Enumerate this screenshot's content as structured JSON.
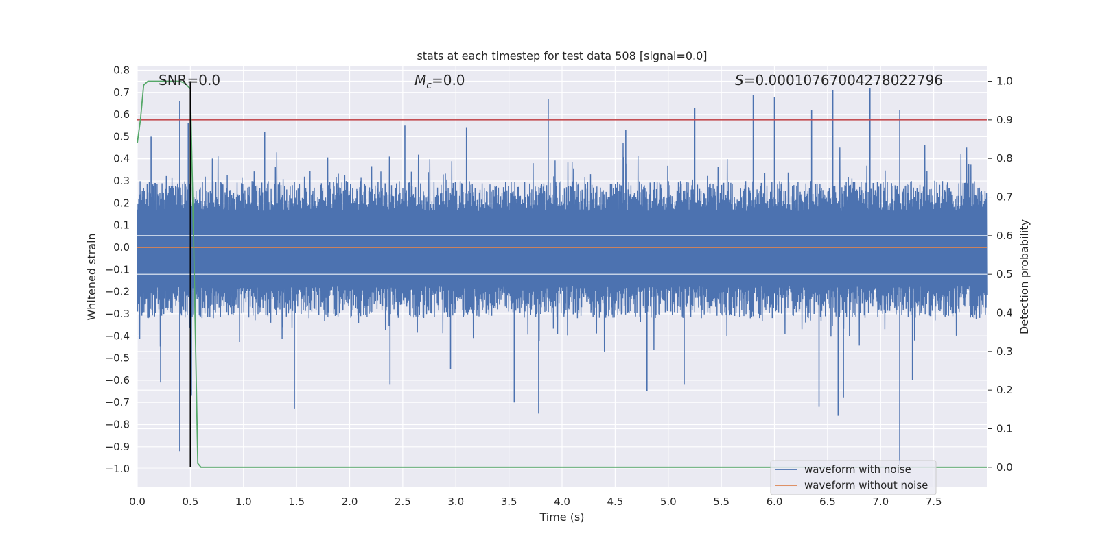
{
  "chart_data": {
    "type": "line",
    "title": "stats at each timestep for test data 508 [signal=0.0]",
    "xlabel": "Time (s)",
    "ylabel_left": "Whitened strain",
    "ylabel_right": "Detection probability",
    "xlim": [
      0.0,
      8.0
    ],
    "ylim_left": [
      -1.08,
      0.82
    ],
    "ylim_right": [
      -0.05,
      1.04
    ],
    "x_ticks": [
      "0.0",
      "0.5",
      "1.0",
      "1.5",
      "2.0",
      "2.5",
      "3.0",
      "3.5",
      "4.0",
      "4.5",
      "5.0",
      "5.5",
      "6.0",
      "6.5",
      "7.0",
      "7.5"
    ],
    "y_left_ticks": [
      "0.8",
      "0.7",
      "0.6",
      "0.5",
      "0.4",
      "0.3",
      "0.2",
      "0.1",
      "0.0",
      "−0.1",
      "−0.2",
      "−0.3",
      "−0.4",
      "−0.5",
      "−0.6",
      "−0.7",
      "−0.8",
      "−0.9",
      "−1.0"
    ],
    "y_right_ticks": [
      "1.0",
      "0.9",
      "0.8",
      "0.7",
      "0.6",
      "0.5",
      "0.4",
      "0.3",
      "0.2",
      "0.1",
      "0.0"
    ],
    "grid": true,
    "legend_placement": "lower-right",
    "annotations": {
      "snr": "SNR=0.0",
      "mc_symbol": "M",
      "mc_sub": "c",
      "mc_value": "=0.0",
      "s_symbol": "S",
      "s_value": "=0.00010767004278022796"
    },
    "series": [
      {
        "name": "waveform with noise",
        "axis": "left",
        "color": "#4c72b0",
        "envelope_upper": 0.3,
        "envelope_lower": -0.32,
        "peaks": [
          [
            0.4,
            0.66
          ],
          [
            0.48,
            0.56
          ],
          [
            0.13,
            0.5
          ],
          [
            3.87,
            0.67
          ],
          [
            5.25,
            0.63
          ],
          [
            5.8,
            0.69
          ],
          [
            6.0,
            0.68
          ],
          [
            6.55,
            0.71
          ],
          [
            6.9,
            0.72
          ],
          [
            7.18,
            0.62
          ],
          [
            6.35,
            0.62
          ],
          [
            2.52,
            0.55
          ],
          [
            4.6,
            0.53
          ],
          [
            1.2,
            0.52
          ],
          [
            3.1,
            0.54
          ]
        ],
        "troughs": [
          [
            0.4,
            -0.92
          ],
          [
            0.51,
            -0.67
          ],
          [
            0.22,
            -0.61
          ],
          [
            1.48,
            -0.73
          ],
          [
            2.38,
            -0.62
          ],
          [
            3.55,
            -0.7
          ],
          [
            3.78,
            -0.75
          ],
          [
            4.8,
            -0.65
          ],
          [
            5.15,
            -0.62
          ],
          [
            6.42,
            -0.72
          ],
          [
            6.6,
            -0.76
          ],
          [
            6.65,
            -0.68
          ],
          [
            7.18,
            -0.98
          ],
          [
            7.3,
            -0.6
          ],
          [
            2.95,
            -0.55
          ]
        ]
      },
      {
        "name": "waveform without noise",
        "axis": "left",
        "color": "#dd8452",
        "x": [
          0.0,
          8.0
        ],
        "y": [
          0.0,
          0.0
        ]
      },
      {
        "axis": "right",
        "color": "#55a868",
        "x": [
          0.0,
          0.03,
          0.06,
          0.1,
          0.2,
          0.3,
          0.4,
          0.45,
          0.5,
          0.53,
          0.57,
          0.6,
          0.7,
          8.0
        ],
        "y": [
          0.84,
          0.9,
          0.99,
          1.0,
          1.0,
          1.0,
          1.0,
          0.995,
          0.98,
          0.6,
          0.01,
          0.0,
          0.0,
          0.0
        ]
      }
    ],
    "threshold_right": 0.9,
    "threshold_color": "#c44e52",
    "vline_x": 0.5,
    "vline_color": "#000000"
  }
}
